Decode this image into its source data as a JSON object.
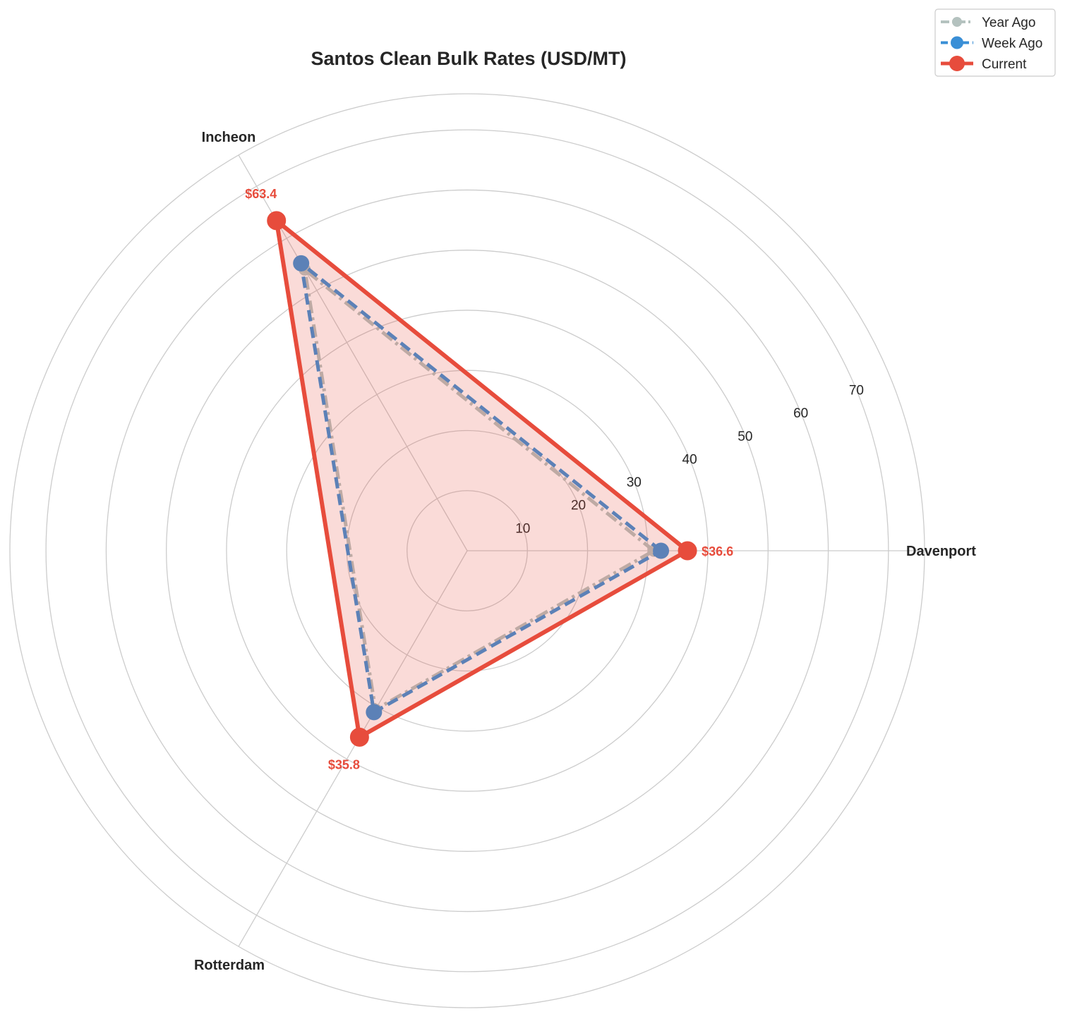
{
  "chart_data": {
    "type": "radar",
    "title": "Santos Clean Bulk Rates (USD/MT)",
    "categories": [
      "Davenport",
      "Incheon",
      "Rotterdam"
    ],
    "radial_ticks": [
      10,
      20,
      30,
      40,
      50,
      60,
      70
    ],
    "rlim": [
      0,
      76
    ],
    "grid": true,
    "legend_position": "top-right",
    "series": [
      {
        "name": "Year Ago",
        "values": [
          31.0,
          54.0,
          30.5
        ],
        "color": "#b4c2bf",
        "style": "dashdot"
      },
      {
        "name": "Week Ago",
        "values": [
          32.2,
          55.2,
          31.0
        ],
        "color": "#3a8fd6",
        "style": "dashed"
      },
      {
        "name": "Current",
        "values": [
          36.6,
          63.4,
          35.8
        ],
        "color": "#e74c3c",
        "style": "solid",
        "fill": true
      }
    ],
    "data_labels": [
      "$36.6",
      "$63.4",
      "$35.8"
    ],
    "data_label_color": "#e74c3c"
  }
}
